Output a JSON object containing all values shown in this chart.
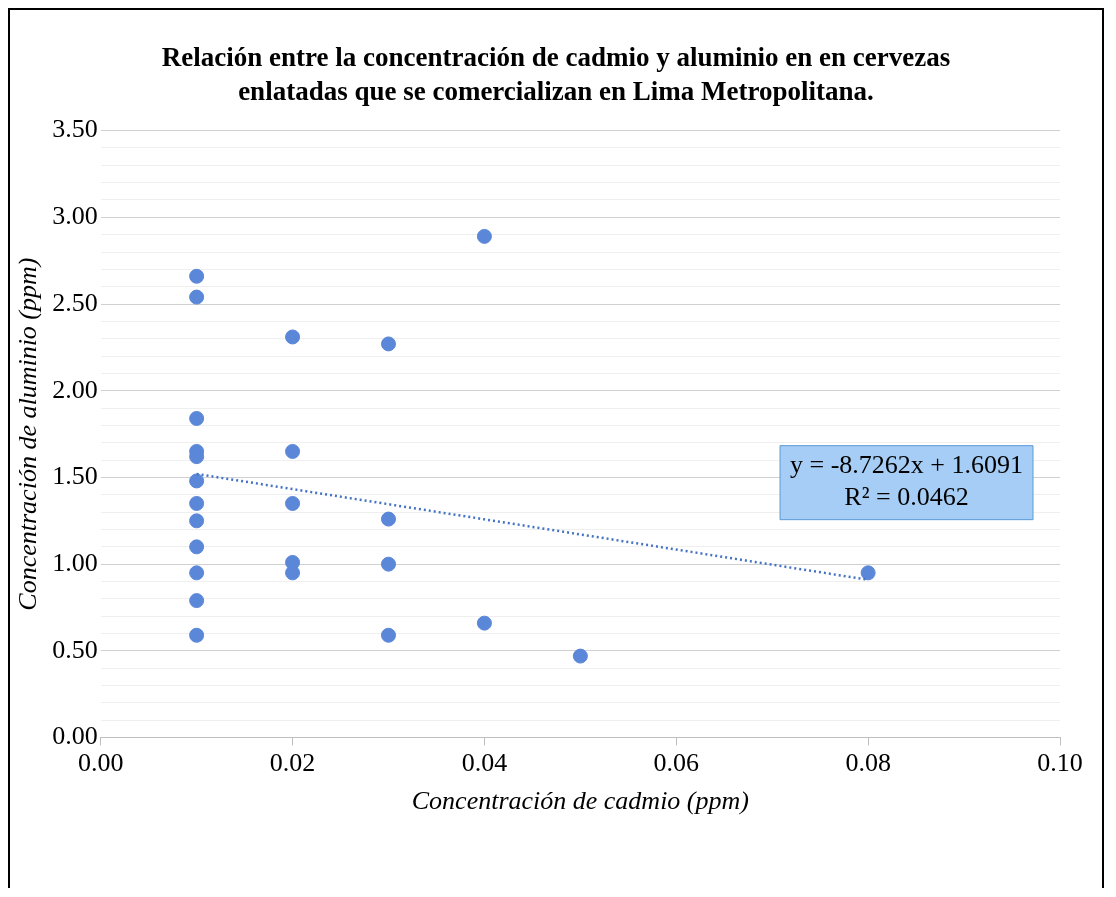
{
  "chart_data": {
    "type": "scatter",
    "title": "Relación entre la concentración de cadmio y aluminio en en cervezas enlatadas que se comercializan en Lima Metropolitana.",
    "xlabel": "Concentración de cadmio (ppm)",
    "ylabel": "Concentración de aluminio (ppm)",
    "xlim": [
      0,
      0.1
    ],
    "xticks": [
      {
        "value": 0,
        "label": "0.00"
      },
      {
        "value": 0.02,
        "label": "0.02"
      },
      {
        "value": 0.04,
        "label": "0.04"
      },
      {
        "value": 0.06,
        "label": "0.06"
      },
      {
        "value": 0.08,
        "label": "0.08"
      },
      {
        "value": 0.1,
        "label": "0.10"
      }
    ],
    "ylim": [
      0,
      3.5
    ],
    "yticks": [
      {
        "value": 0,
        "label": "0.00"
      },
      {
        "value": 0.1,
        "label": null
      },
      {
        "value": 0.2,
        "label": null
      },
      {
        "value": 0.3,
        "label": null
      },
      {
        "value": 0.4,
        "label": null
      },
      {
        "value": 0.5,
        "label": "0.50"
      },
      {
        "value": 0.6,
        "label": null
      },
      {
        "value": 0.7,
        "label": null
      },
      {
        "value": 0.8,
        "label": null
      },
      {
        "value": 0.9,
        "label": null
      },
      {
        "value": 1,
        "label": "1.00"
      },
      {
        "value": 1.1,
        "label": null
      },
      {
        "value": 1.2,
        "label": null
      },
      {
        "value": 1.3,
        "label": null
      },
      {
        "value": 1.4,
        "label": null
      },
      {
        "value": 1.5,
        "label": "1.50"
      },
      {
        "value": 1.6,
        "label": null
      },
      {
        "value": 1.7,
        "label": null
      },
      {
        "value": 1.8,
        "label": null
      },
      {
        "value": 1.9,
        "label": null
      },
      {
        "value": 2,
        "label": "2.00"
      },
      {
        "value": 2.1,
        "label": null
      },
      {
        "value": 2.2,
        "label": null
      },
      {
        "value": 2.3,
        "label": null
      },
      {
        "value": 2.4,
        "label": null
      },
      {
        "value": 2.5,
        "label": "2.50"
      },
      {
        "value": 2.6,
        "label": null
      },
      {
        "value": 2.7,
        "label": null
      },
      {
        "value": 2.8,
        "label": null
      },
      {
        "value": 2.9,
        "label": null
      },
      {
        "value": 3,
        "label": "3.00"
      },
      {
        "value": 3.1,
        "label": null
      },
      {
        "value": 3.2,
        "label": null
      },
      {
        "value": 3.3,
        "label": null
      },
      {
        "value": 3.4,
        "label": null
      },
      {
        "value": 3.5,
        "label": "3.50"
      }
    ],
    "grid": "y",
    "legend": false,
    "marker": "circle",
    "series": [
      {
        "type": "scatter",
        "color": "#5b87d9",
        "x": [
          0.01,
          0.01,
          0.01,
          0.01,
          0.01,
          0.01,
          0.01,
          0.01,
          0.01,
          0.01,
          0.01,
          0.01,
          0.02,
          0.02,
          0.02,
          0.02,
          0.02,
          0.03,
          0.03,
          0.03,
          0.03,
          0.04,
          0.04,
          0.05,
          0.08
        ],
        "values": [
          2.66,
          2.54,
          1.84,
          1.65,
          1.62,
          1.48,
          1.35,
          1.25,
          1.1,
          0.95,
          0.79,
          0.59,
          2.31,
          1.65,
          1.35,
          1.01,
          0.95,
          2.27,
          1.26,
          1.0,
          0.59,
          2.89,
          0.66,
          0.47,
          0.95
        ]
      },
      {
        "type": "line",
        "color": "#4472c4",
        "line_style": "dotted",
        "marker": "none",
        "x": [
          0.01,
          0.08
        ],
        "values": [
          1.52,
          0.91
        ]
      }
    ],
    "annotations": [
      "y = -8.7262x + 1.6091\nR² = 0.0462"
    ]
  }
}
